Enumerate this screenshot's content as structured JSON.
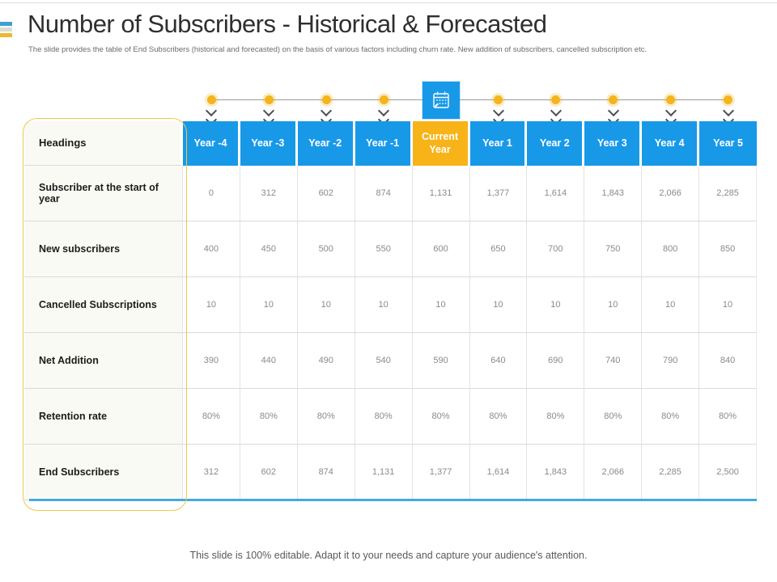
{
  "slide": {
    "title": "Number of Subscribers - Historical & Forecasted",
    "subtitle": "The slide provides the table of End Subscribers (historical and forecasted) on the basis of various factors including churn rate. New addition of subscribers, cancelled subscription etc.",
    "footer": "This slide is 100% editable. Adapt it to your needs and capture your audience's attention."
  },
  "colors": {
    "header_blue": "#1899e8",
    "current_year_yellow": "#f7b318",
    "timeline_dot_yellow": "#f2b51d",
    "label_column_bg": "#fafaf4",
    "label_outline_yellow": "#eec84d",
    "table_bottom_blue": "#45aadf",
    "accent_bar_blue": "#3e9fd4",
    "accent_bar_sage": "#d8dfd2",
    "accent_bar_gold": "#e9b933",
    "value_text_gray": "#8a8a8a"
  },
  "timeline": {
    "marker_count": 10,
    "calendar_marker_index": 4,
    "chevrons_per_marker": 3,
    "calendar_icon": "calendar-icon"
  },
  "chart_data": {
    "type": "table",
    "title": "Number of Subscribers - Historical & Forecasted",
    "columns": [
      "Headings",
      "Year -4",
      "Year -3",
      "Year -2",
      "Year -1",
      "Current Year",
      "Year 1",
      "Year 2",
      "Year 3",
      "Year 4",
      "Year 5"
    ],
    "current_year_column_index": 5,
    "rows": [
      {
        "label": "Subscriber at the start of year",
        "values": [
          "0",
          "312",
          "602",
          "874",
          "1,131",
          "1,377",
          "1,614",
          "1,843",
          "2,066",
          "2,285"
        ]
      },
      {
        "label": "New subscribers",
        "values": [
          "400",
          "450",
          "500",
          "550",
          "600",
          "650",
          "700",
          "750",
          "800",
          "850"
        ]
      },
      {
        "label": "Cancelled Subscriptions",
        "values": [
          "10",
          "10",
          "10",
          "10",
          "10",
          "10",
          "10",
          "10",
          "10",
          "10"
        ]
      },
      {
        "label": "Net Addition",
        "values": [
          "390",
          "440",
          "490",
          "540",
          "590",
          "640",
          "690",
          "740",
          "790",
          "840"
        ]
      },
      {
        "label": "Retention rate",
        "values": [
          "80%",
          "80%",
          "80%",
          "80%",
          "80%",
          "80%",
          "80%",
          "80%",
          "80%",
          "80%"
        ]
      },
      {
        "label": "End Subscribers",
        "values": [
          "312",
          "602",
          "874",
          "1,131",
          "1,377",
          "1,614",
          "1,843",
          "2,066",
          "2,285",
          "2,500"
        ]
      }
    ]
  }
}
